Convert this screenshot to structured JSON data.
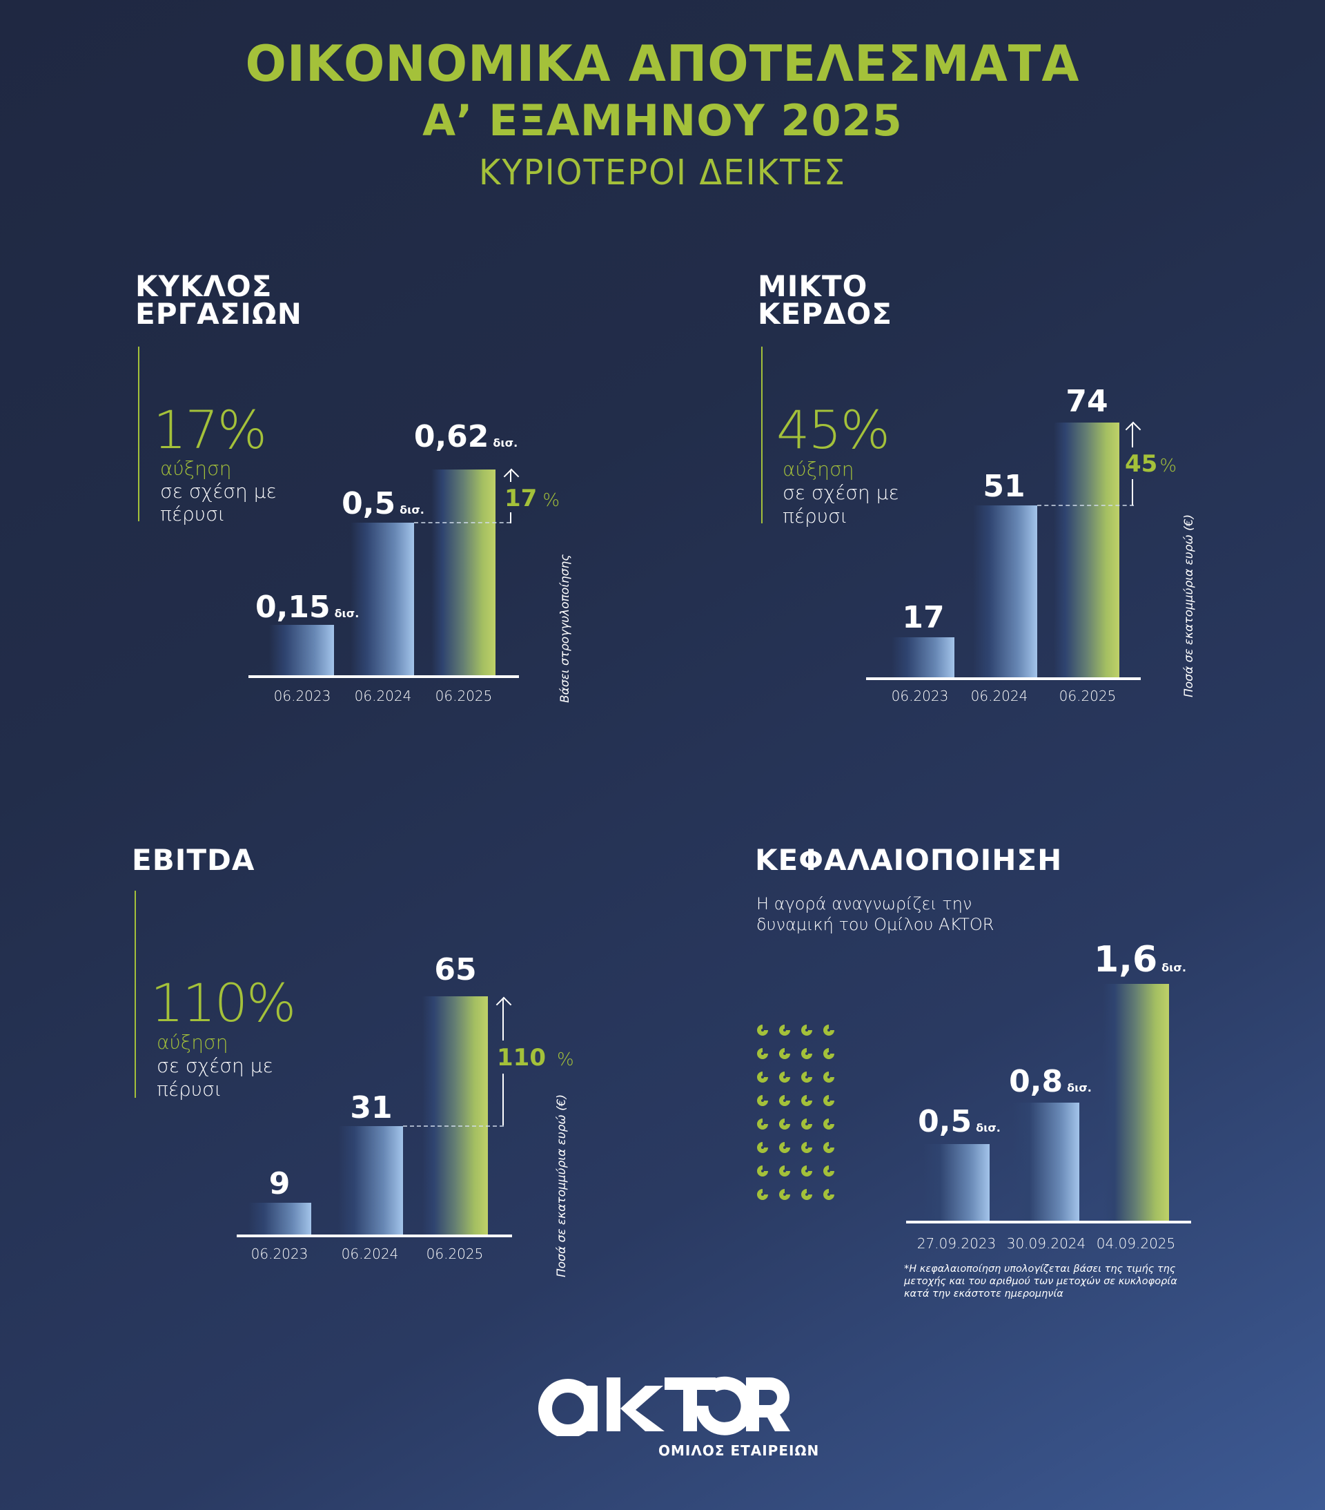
{
  "header": {
    "title_line1": "ΟΙΚΟΝΟΜΙΚΑ ΑΠΟΤΕΛΕΣΜΑΤΑ",
    "title_line2": "Α’ ΕΞΑΜΗΝΟΥ 2025",
    "subtitle": "ΚΥΡΙΟΤΕΡΟΙ ΔΕΙΚΤΕΣ"
  },
  "colors": {
    "accent_green": "#a4c13a",
    "bar_blue_light": "#a3c4ea",
    "bar_green_light": "#bfd168",
    "background_top": "#1f2842",
    "background_bottom": "#3d5a94",
    "text": "#ffffff"
  },
  "panels": {
    "turnover": {
      "heading_line1": "ΚΥΚΛΟΣ",
      "heading_line2": "ΕΡΓΑΣΙΩΝ",
      "growth_pct": "17%",
      "growth_word": "αύξηση",
      "growth_desc_line1": "σε σχέση με",
      "growth_desc_line2": "πέρυσι",
      "bars": [
        {
          "label": "06.2023",
          "value": "0,15",
          "unit": "δισ."
        },
        {
          "label": "06.2024",
          "value": "0,5",
          "unit": "δισ."
        },
        {
          "label": "06.2025",
          "value": "0,62",
          "unit": "δισ."
        }
      ],
      "delta_value": "17",
      "delta_unit": "%",
      "note": "Βάσει στρογγυλοποίησης"
    },
    "gross_profit": {
      "heading_line1": "ΜΙΚΤΟ",
      "heading_line2": "ΚΕΡΔΟΣ",
      "growth_pct": "45%",
      "growth_word": "αύξηση",
      "growth_desc_line1": "σε σχέση με",
      "growth_desc_line2": "πέρυσι",
      "bars": [
        {
          "label": "06.2023",
          "value": "17"
        },
        {
          "label": "06.2024",
          "value": "51"
        },
        {
          "label": "06.2025",
          "value": "74"
        }
      ],
      "delta_value": "45",
      "delta_unit": "%",
      "note": "Ποσά σε εκατομμύρια ευρώ (€)"
    },
    "ebitda": {
      "heading": "EBITDA",
      "growth_pct": "110%",
      "growth_word": "αύξηση",
      "growth_desc_line1": "σε σχέση με",
      "growth_desc_line2": "πέρυσι",
      "bars": [
        {
          "label": "06.2023",
          "value": "9"
        },
        {
          "label": "06.2024",
          "value": "31"
        },
        {
          "label": "06.2025",
          "value": "65"
        }
      ],
      "delta_value": "110",
      "delta_unit": "%",
      "note": "Ποσά σε εκατομμύρια ευρώ (€)"
    },
    "market_cap": {
      "heading": "ΚΕΦΑΛΑΙΟΠΟΙΗΣΗ",
      "subtitle_line1": "Η αγορά αναγνωρίζει την",
      "subtitle_line2": "δυναμική του Ομίλου AKTOR",
      "bars": [
        {
          "label": "27.09.2023",
          "value": "0,5",
          "unit": "δισ."
        },
        {
          "label": "30.09.2024",
          "value": "0,8",
          "unit": "δισ."
        },
        {
          "label": "04.09.2025",
          "value": "1,6",
          "unit": "δισ."
        }
      ],
      "footnote_line1": "*Η κεφαλαιοποίηση υπολογίζεται βάσει της τιμής της",
      "footnote_line2": "μετοχής και του αριθμού των μετοχών σε κυκλοφορία",
      "footnote_line3": "κατά την εκάστοτε ημερομηνία",
      "decor_icon": "ring-dot-grid-icon"
    }
  },
  "footer": {
    "logo_text": "AKTOR",
    "logo_subtitle": "ΟΜΙΛΟΣ ΕΤΑΙΡΕΙΩΝ"
  },
  "chart_data": [
    {
      "type": "bar",
      "title": "ΚΥΚΛΟΣ ΕΡΓΑΣΙΩΝ",
      "categories": [
        "06.2023",
        "06.2024",
        "06.2025"
      ],
      "values": [
        0.15,
        0.5,
        0.62
      ],
      "unit": "δισ. €",
      "annotations": [
        "17% αύξηση σε σχέση με πέρυσι",
        "Βάσει στρογγυλοποίησης"
      ],
      "xlabel": "",
      "ylabel": "",
      "grid": false
    },
    {
      "type": "bar",
      "title": "ΜΙΚΤΟ ΚΕΡΔΟΣ",
      "categories": [
        "06.2023",
        "06.2024",
        "06.2025"
      ],
      "values": [
        17,
        51,
        74
      ],
      "unit": "εκατ. €",
      "annotations": [
        "45% αύξηση σε σχέση με πέρυσι"
      ],
      "xlabel": "",
      "ylabel": "Ποσά σε εκατομμύρια ευρώ (€)",
      "grid": false
    },
    {
      "type": "bar",
      "title": "EBITDA",
      "categories": [
        "06.2023",
        "06.2024",
        "06.2025"
      ],
      "values": [
        9,
        31,
        65
      ],
      "unit": "εκατ. €",
      "annotations": [
        "110% αύξηση σε σχέση με πέρυσι"
      ],
      "xlabel": "",
      "ylabel": "Ποσά σε εκατομμύρια ευρώ (€)",
      "grid": false
    },
    {
      "type": "bar",
      "title": "ΚΕΦΑΛΑΙΟΠΟΙΗΣΗ",
      "subtitle": "Η αγορά αναγνωρίζει την δυναμική του Ομίλου AKTOR",
      "categories": [
        "27.09.2023",
        "30.09.2024",
        "04.09.2025"
      ],
      "values": [
        0.5,
        0.8,
        1.6
      ],
      "unit": "δισ. €",
      "annotations": [
        "*Η κεφαλαιοποίηση υπολογίζεται βάσει της τιμής της μετοχής και του αριθμού των μετοχών σε κυκλοφορία κατά την εκάστοτε ημερομηνία"
      ],
      "xlabel": "",
      "ylabel": "",
      "grid": false
    }
  ]
}
